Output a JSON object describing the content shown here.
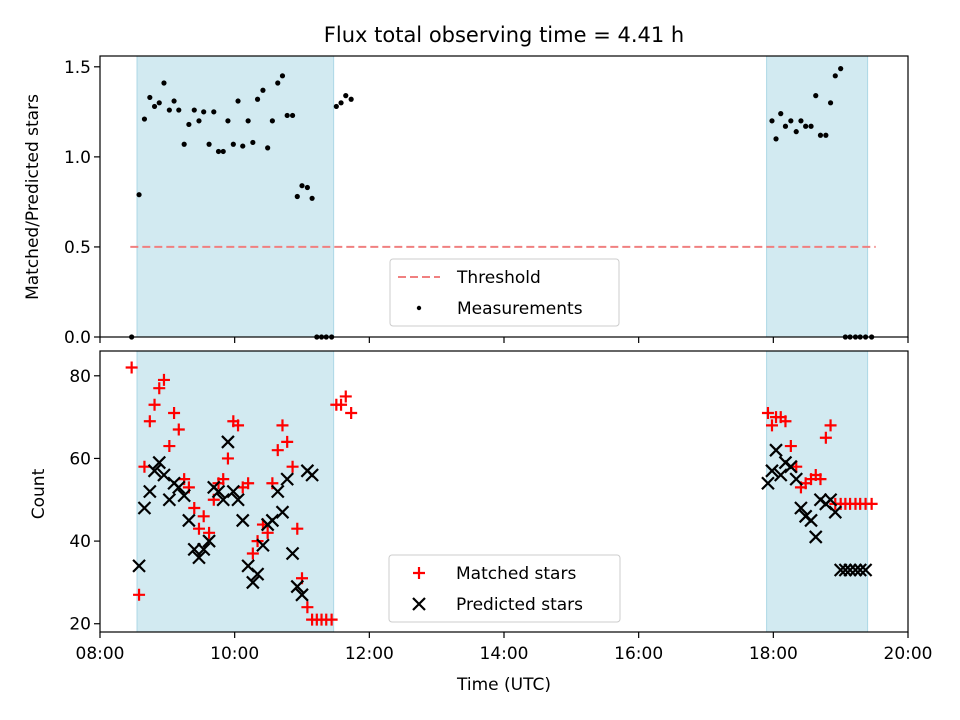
{
  "title": "Flux total observing time = 4.41 h",
  "colors": {
    "shade": "#add8e6",
    "threshold": "#f08080",
    "matched": "#ff0000",
    "predicted": "#000000",
    "measurement": "#000000"
  },
  "chart_data": [
    {
      "type": "scatter",
      "ylabel": "Matched/Predicted stars",
      "ylim": [
        0,
        1.56
      ],
      "yticks": [
        0,
        0.5,
        1.0,
        1.5
      ],
      "ytick_labels": [
        "0.0",
        "0.5",
        "1.0",
        "1.5"
      ],
      "xlim": [
        8.0,
        20.0
      ],
      "shaded_ranges": [
        [
          8.55,
          11.47
        ],
        [
          17.9,
          19.4
        ]
      ],
      "threshold": {
        "value": 0.5,
        "x_range": [
          8.45,
          19.52
        ],
        "label": "Threshold"
      },
      "legend": {
        "position": "lower-center",
        "entries": [
          "Threshold",
          "Measurements"
        ]
      },
      "series": [
        {
          "name": "Measurements",
          "x": [
            8.47,
            8.58,
            8.66,
            8.74,
            8.81,
            8.88,
            8.95,
            9.03,
            9.1,
            9.17,
            9.25,
            9.32,
            9.4,
            9.47,
            9.54,
            9.62,
            9.69,
            9.76,
            9.83,
            9.9,
            9.98,
            10.05,
            10.12,
            10.2,
            10.27,
            10.34,
            10.42,
            10.49,
            10.56,
            10.64,
            10.71,
            10.78,
            10.86,
            10.93,
            11.0,
            11.08,
            11.15,
            11.22,
            11.29,
            11.36,
            11.44,
            11.51,
            11.58,
            11.65,
            11.73,
            17.98,
            18.04,
            18.11,
            18.18,
            18.26,
            18.34,
            18.41,
            18.48,
            18.56,
            18.63,
            18.7,
            18.78,
            18.85,
            18.92,
            19.0,
            19.07,
            19.14,
            19.22,
            19.29,
            19.37,
            19.46
          ],
          "y": [
            0.0,
            0.79,
            1.21,
            1.33,
            1.28,
            1.3,
            1.41,
            1.26,
            1.31,
            1.26,
            1.07,
            1.18,
            1.26,
            1.2,
            1.25,
            1.07,
            1.25,
            1.03,
            1.03,
            1.2,
            1.07,
            1.31,
            1.06,
            1.2,
            1.08,
            1.32,
            1.37,
            1.05,
            1.2,
            1.41,
            1.45,
            1.23,
            1.23,
            0.78,
            0.84,
            0.83,
            0.77,
            0.0,
            0.0,
            0.0,
            0.0,
            1.28,
            1.3,
            1.34,
            1.32,
            1.2,
            1.1,
            1.24,
            1.17,
            1.2,
            1.14,
            1.2,
            1.17,
            1.17,
            1.34,
            1.12,
            1.12,
            1.3,
            1.45,
            1.49,
            0.0,
            0.0,
            0.0,
            0.0,
            0.0,
            0.0
          ]
        }
      ]
    },
    {
      "type": "scatter",
      "xlabel": "Time (UTC)",
      "ylabel": "Count",
      "ylim": [
        18,
        86
      ],
      "yticks": [
        20,
        40,
        60,
        80
      ],
      "ytick_labels": [
        "20",
        "40",
        "60",
        "80"
      ],
      "xlim": [
        8.0,
        20.0
      ],
      "xticks": [
        8,
        10,
        12,
        14,
        16,
        18,
        20
      ],
      "xtick_labels": [
        "08:00",
        "10:00",
        "12:00",
        "14:00",
        "16:00",
        "18:00",
        "20:00"
      ],
      "shaded_ranges": [
        [
          8.55,
          11.47
        ],
        [
          17.9,
          19.4
        ]
      ],
      "legend": {
        "position": "lower-center",
        "entries": [
          "Matched stars",
          "Predicted stars"
        ]
      },
      "series": [
        {
          "name": "Matched stars",
          "x": [
            8.47,
            8.58,
            8.66,
            8.74,
            8.81,
            8.88,
            8.95,
            9.03,
            9.1,
            9.17,
            9.25,
            9.32,
            9.4,
            9.47,
            9.54,
            9.62,
            9.69,
            9.76,
            9.83,
            9.9,
            9.98,
            10.05,
            10.12,
            10.2,
            10.27,
            10.34,
            10.42,
            10.49,
            10.56,
            10.64,
            10.71,
            10.78,
            10.86,
            10.93,
            11.0,
            11.08,
            11.15,
            11.22,
            11.29,
            11.36,
            11.44,
            11.51,
            11.58,
            11.65,
            11.73,
            17.92,
            17.98,
            18.04,
            18.11,
            18.18,
            18.26,
            18.34,
            18.41,
            18.48,
            18.56,
            18.63,
            18.7,
            18.78,
            18.85,
            18.92,
            19.0,
            19.07,
            19.14,
            19.22,
            19.29,
            19.37,
            19.46
          ],
          "y": [
            82,
            27,
            58,
            69,
            73,
            77,
            79,
            63,
            71,
            67,
            55,
            53,
            48,
            43,
            46,
            42,
            50,
            54,
            55,
            60,
            69,
            68,
            53,
            54,
            37,
            40,
            44,
            42,
            54,
            62,
            68,
            64,
            58,
            43,
            31,
            24,
            21,
            21,
            21,
            21,
            21,
            73,
            73,
            75,
            71,
            71,
            68,
            70,
            70,
            69,
            63,
            58,
            53,
            54,
            55,
            56,
            55,
            65,
            68,
            49,
            49,
            49,
            49,
            49,
            49,
            49,
            49
          ]
        },
        {
          "name": "Predicted stars",
          "x": [
            8.58,
            8.66,
            8.74,
            8.81,
            8.88,
            8.95,
            9.03,
            9.1,
            9.17,
            9.25,
            9.32,
            9.4,
            9.47,
            9.54,
            9.62,
            9.69,
            9.76,
            9.83,
            9.9,
            9.98,
            10.05,
            10.12,
            10.2,
            10.27,
            10.34,
            10.42,
            10.49,
            10.56,
            10.64,
            10.71,
            10.78,
            10.86,
            10.93,
            11.0,
            11.08,
            11.15,
            17.92,
            17.98,
            18.04,
            18.11,
            18.18,
            18.26,
            18.34,
            18.41,
            18.48,
            18.56,
            18.63,
            18.7,
            18.78,
            18.85,
            18.92,
            19.0,
            19.07,
            19.14,
            19.22,
            19.29,
            19.37
          ],
          "y": [
            34,
            48,
            52,
            57,
            59,
            56,
            50,
            54,
            53,
            51,
            45,
            38,
            36,
            38,
            40,
            53,
            52,
            50,
            64,
            52,
            50,
            45,
            34,
            30,
            32,
            39,
            44,
            45,
            52,
            47,
            55,
            37,
            29,
            27,
            57,
            56,
            54,
            57,
            62,
            56,
            59,
            58,
            55,
            48,
            46,
            45,
            41,
            50,
            49,
            50,
            47,
            33,
            33,
            33,
            33,
            33,
            33
          ]
        }
      ]
    }
  ]
}
